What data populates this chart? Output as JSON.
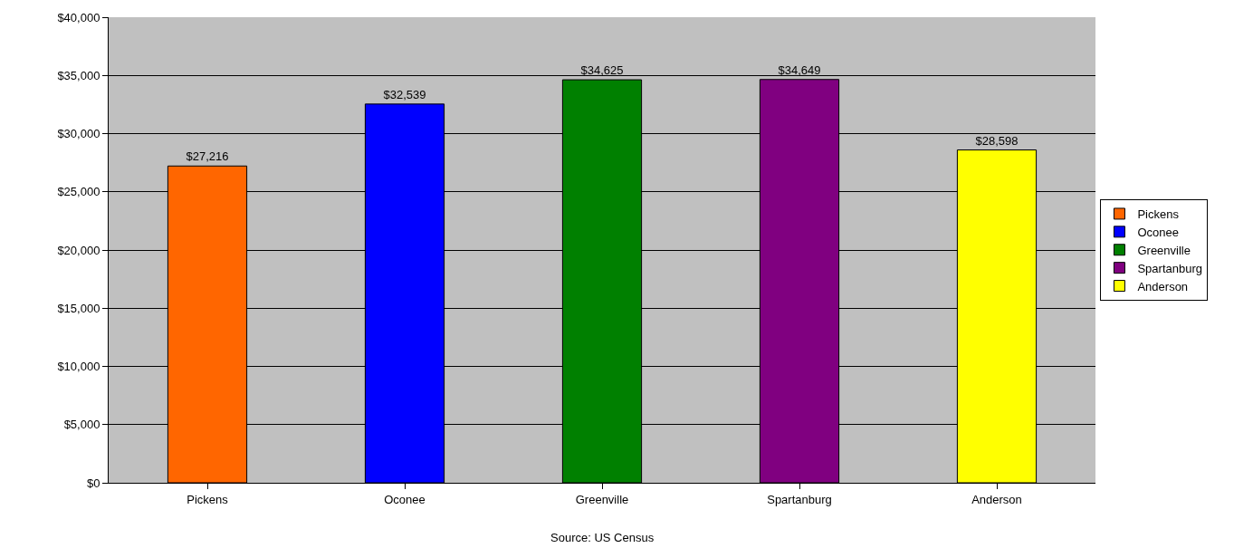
{
  "chart_data": {
    "type": "bar",
    "categories": [
      "Pickens",
      "Oconee",
      "Greenville",
      "Spartanburg",
      "Anderson"
    ],
    "series": [
      {
        "name": "Pickens",
        "color": "#ff6600",
        "values": [
          27216,
          null,
          null,
          null,
          null
        ],
        "value_labels": [
          "$27,216",
          null,
          null,
          null,
          null
        ]
      },
      {
        "name": "Oconee",
        "color": "#0000ff",
        "values": [
          null,
          32539,
          null,
          null,
          null
        ],
        "value_labels": [
          null,
          "$32,539",
          null,
          null,
          null
        ]
      },
      {
        "name": "Greenville",
        "color": "#008000",
        "values": [
          null,
          null,
          34625,
          null,
          null
        ],
        "value_labels": [
          null,
          null,
          "$34,625",
          null,
          null
        ]
      },
      {
        "name": "Spartanburg",
        "color": "#800080",
        "values": [
          null,
          null,
          null,
          34649,
          null
        ],
        "value_labels": [
          null,
          null,
          null,
          "$34,649",
          null
        ]
      },
      {
        "name": "Anderson",
        "color": "#ffff00",
        "values": [
          null,
          null,
          null,
          null,
          28598
        ],
        "value_labels": [
          null,
          null,
          null,
          null,
          "$28,598"
        ]
      }
    ],
    "ylim": [
      0,
      40000
    ],
    "yticks": [
      {
        "value": 0,
        "label": "$0"
      },
      {
        "value": 5000,
        "label": "$5,000"
      },
      {
        "value": 10000,
        "label": "$10,000"
      },
      {
        "value": 15000,
        "label": "$15,000"
      },
      {
        "value": 20000,
        "label": "$20,000"
      },
      {
        "value": 25000,
        "label": "$25,000"
      },
      {
        "value": 30000,
        "label": "$30,000"
      },
      {
        "value": 35000,
        "label": "$35,000"
      },
      {
        "value": 40000,
        "label": "$40,000"
      }
    ],
    "grid": "y",
    "legend": "right",
    "annotations": [
      "Source: US Census"
    ]
  }
}
